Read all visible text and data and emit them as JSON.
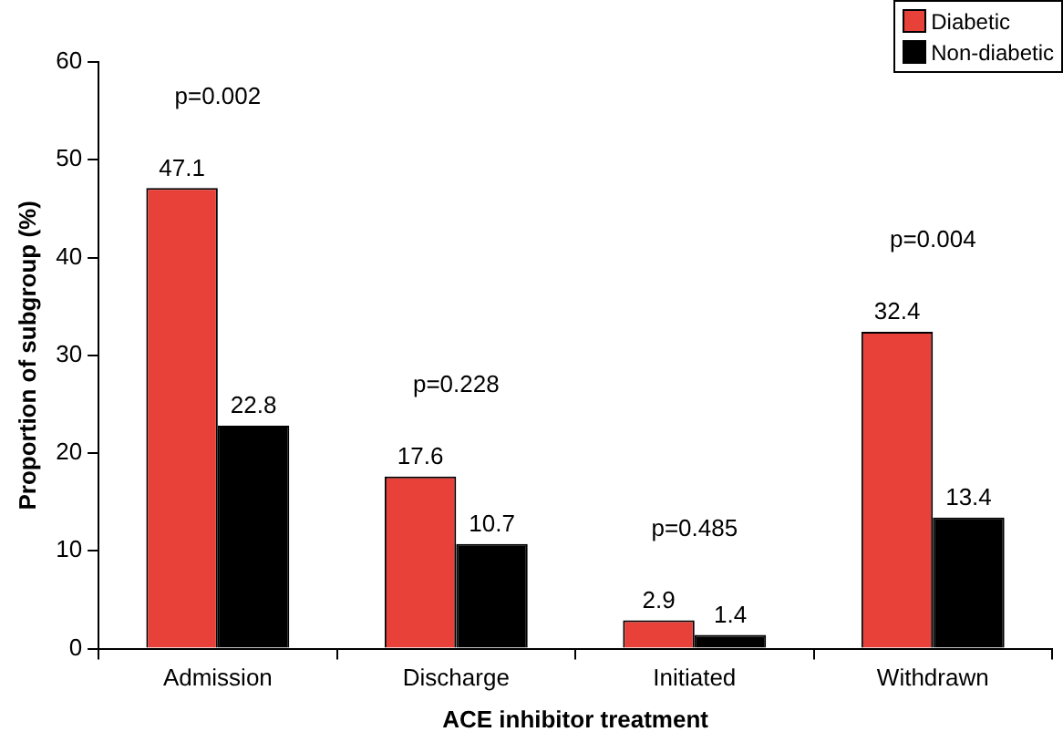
{
  "chart_data": {
    "type": "bar",
    "xlabel": "ACE inhibitor treatment",
    "ylabel": "Proportion of subgroup (%)",
    "categories": [
      "Admission",
      "Discharge",
      "Initiated",
      "Withdrawn"
    ],
    "series": [
      {
        "name": "Diabetic",
        "color": "#e8413a",
        "values": [
          47.1,
          17.6,
          2.9,
          32.4
        ]
      },
      {
        "name": "Non-diabetic",
        "color": "#000000",
        "values": [
          22.8,
          10.7,
          1.4,
          13.4
        ]
      }
    ],
    "ylim": [
      0,
      60
    ],
    "yticks": [
      0,
      10,
      20,
      30,
      40,
      50,
      60
    ],
    "grid": false,
    "legend": "top right",
    "data_labels": true,
    "annotations": [
      "p=0.002",
      "p=0.228",
      "p=0.485",
      "p=0.004"
    ]
  }
}
